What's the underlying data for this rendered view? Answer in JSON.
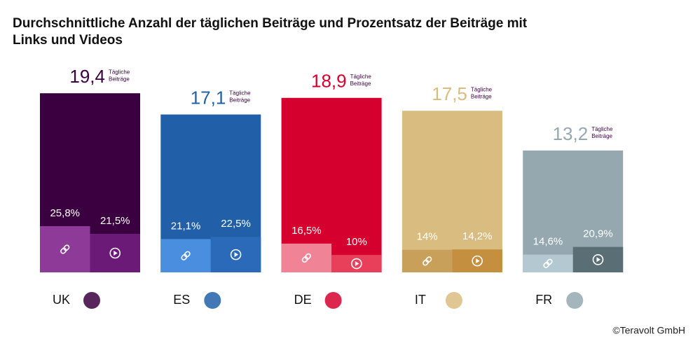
{
  "chart_data": {
    "type": "bar",
    "title": "Durchschnittliche Anzahl der täglichen Beiträge und Prozentsatz der Beiträge mit Links und Videos",
    "categories": [
      "UK",
      "ES",
      "DE",
      "IT",
      "FR"
    ],
    "values": [
      19.4,
      17.1,
      18.9,
      17.5,
      13.2
    ],
    "value_labels": [
      "19,4",
      "17,1",
      "18,9",
      "17,5",
      "13,2"
    ],
    "daily_label": [
      "Tägliche",
      "Beiträge"
    ],
    "colors": [
      "#3b0040",
      "#2160a8",
      "#d6002f",
      "#d9bc80",
      "#95a8b0"
    ],
    "ylim": [
      0,
      29.5
    ],
    "links": {
      "values": [
        25.8,
        21.1,
        16.5,
        14,
        14.6
      ],
      "value_labels": [
        "25,8%",
        "21,1%",
        "16,5%",
        "14%",
        "14,6%"
      ],
      "colors": [
        "#8e3a98",
        "#4a8ee0",
        "#f08496",
        "#c9a05a",
        "#b3c8d0"
      ]
    },
    "videos": {
      "values": [
        21.5,
        22.5,
        10,
        14.2,
        20.9
      ],
      "value_labels": [
        "21,5%",
        "22,5%",
        "10%",
        "14,2%",
        "20,9%"
      ],
      "colors": [
        "#6c1a78",
        "#2a6ab8",
        "#e8405a",
        "#c49040",
        "#5a6e76"
      ]
    },
    "footer": "©Teravolt GmbH"
  }
}
